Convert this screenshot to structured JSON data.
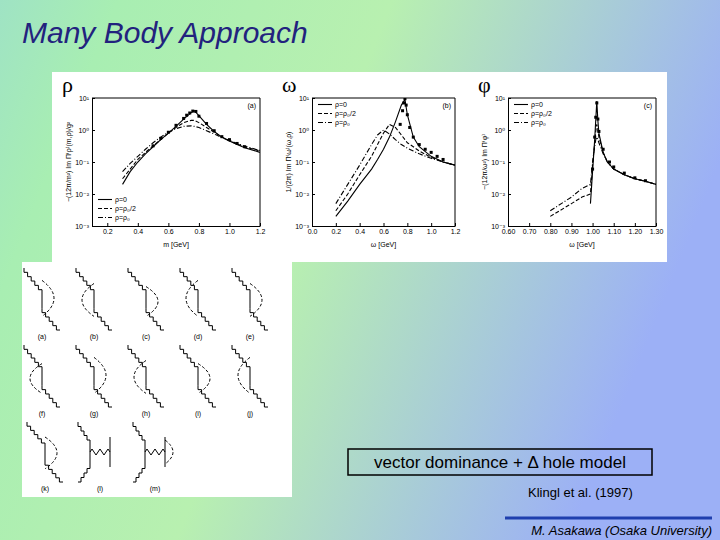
{
  "slide": {
    "title": "Many Body Approach",
    "box_text": "vector dominance + Δ hole model",
    "citation": "Klingl et al. (1997)",
    "author": "M. Asakawa (Osaka University)"
  },
  "diagrams": {
    "labels": [
      "(a)",
      "(b)",
      "(c)",
      "(d)",
      "(e)",
      "(f)",
      "(g)",
      "(h)",
      "(i)",
      "(j)",
      "(k)",
      "(l)",
      "(m)"
    ]
  },
  "chart_data": [
    {
      "type": "line",
      "title": "ρ",
      "xlabel": "m [GeV]",
      "ylabel": "−(12π/m²) Im Π⁽ρ⁾(m,ρ)/g²",
      "log": "y",
      "xlim": [
        0.1,
        1.2
      ],
      "xticks": [
        0.2,
        0.4,
        0.6,
        0.8,
        {
          "value": 1,
          "label": "1.0"
        },
        1.2
      ],
      "ylim": [
        0.001,
        10
      ],
      "yticks": [
        {
          "value": 0.001,
          "label": "10⁻³"
        },
        {
          "value": 0.01,
          "label": "10⁻²"
        },
        {
          "value": 0.1,
          "label": "10⁻¹"
        },
        {
          "value": 1,
          "label": "10⁰"
        },
        {
          "value": 10,
          "label": "10¹"
        }
      ],
      "legend": "lower left",
      "annotations": [
        {
          "text": "(a)"
        }
      ],
      "series": [
        {
          "name": "ρ=0",
          "type": "line",
          "color": "#000000",
          "line_style": "solid",
          "x": [
            0.3,
            0.35,
            0.4,
            0.45,
            0.5,
            0.55,
            0.6,
            0.65,
            0.7,
            0.75,
            0.77,
            0.8,
            0.85,
            0.9,
            0.95,
            1.0,
            1.05,
            1.1,
            1.2
          ],
          "values": [
            0.02,
            0.05,
            0.1,
            0.18,
            0.3,
            0.5,
            0.8,
            1.3,
            2.2,
            3.5,
            4.0,
            2.8,
            1.5,
            0.9,
            0.6,
            0.45,
            0.35,
            0.28,
            0.2
          ]
        },
        {
          "name": "ρ=ρ₀/2",
          "type": "line",
          "color": "#000000",
          "line_style": "dashed",
          "x": [
            0.3,
            0.35,
            0.4,
            0.45,
            0.5,
            0.55,
            0.6,
            0.65,
            0.7,
            0.75,
            0.77,
            0.8,
            0.85,
            0.9,
            0.95,
            1.0,
            1.05,
            1.1,
            1.2
          ],
          "values": [
            0.03,
            0.06,
            0.12,
            0.2,
            0.32,
            0.5,
            0.8,
            1.2,
            1.7,
            2.0,
            2.0,
            1.7,
            1.2,
            0.85,
            0.6,
            0.45,
            0.36,
            0.3,
            0.22
          ]
        },
        {
          "name": "ρ=ρ₀",
          "type": "line",
          "color": "#000000",
          "line_style": "dashdot",
          "x": [
            0.3,
            0.35,
            0.4,
            0.45,
            0.5,
            0.55,
            0.6,
            0.65,
            0.7,
            0.75,
            0.77,
            0.8,
            0.85,
            0.9,
            0.95,
            1.0,
            1.05,
            1.1,
            1.2
          ],
          "values": [
            0.05,
            0.09,
            0.15,
            0.25,
            0.4,
            0.6,
            0.85,
            1.1,
            1.3,
            1.35,
            1.3,
            1.2,
            0.95,
            0.75,
            0.58,
            0.47,
            0.38,
            0.31,
            0.23
          ]
        },
        {
          "type": "scatter",
          "color": "#000000",
          "marker": "square",
          "x": [
            0.5,
            0.55,
            0.6,
            0.65,
            0.7,
            0.72,
            0.74,
            0.76,
            0.78,
            0.8,
            0.85,
            0.9,
            0.95,
            1.0,
            1.05,
            1.1
          ],
          "values": [
            0.32,
            0.55,
            0.85,
            1.4,
            2.3,
            2.9,
            3.4,
            3.9,
            3.8,
            2.7,
            1.6,
            0.95,
            0.62,
            0.5,
            0.38,
            0.3
          ]
        }
      ]
    },
    {
      "type": "line",
      "title": "ω",
      "xlabel": "ω [GeV]",
      "ylabel": "1/(2π) Im Π⁽ω⁾(ω,ρ)",
      "log": "y",
      "xlim": [
        0,
        1.2
      ],
      "xticks": [
        {
          "value": 0,
          "label": "0.0"
        },
        0.2,
        0.4,
        0.6,
        0.8,
        {
          "value": 1,
          "label": "1.0"
        },
        1.2
      ],
      "ylim": [
        0.001,
        10
      ],
      "yticks": [
        {
          "value": 0.001,
          "label": "10⁻³"
        },
        {
          "value": 0.01,
          "label": "10⁻²"
        },
        {
          "value": 0.1,
          "label": "10⁻¹"
        },
        {
          "value": 1,
          "label": "10⁰"
        },
        {
          "value": 10,
          "label": "10¹"
        }
      ],
      "legend": "upper left",
      "annotations": [
        {
          "text": "(b)"
        }
      ],
      "series": [
        {
          "name": "ρ=0",
          "type": "line",
          "color": "#000000",
          "line_style": "solid",
          "x": [
            0.2,
            0.3,
            0.4,
            0.5,
            0.55,
            0.6,
            0.65,
            0.7,
            0.75,
            0.78,
            0.8,
            0.85,
            0.9,
            1.0,
            1.1,
            1.2
          ],
          "values": [
            0.002,
            0.006,
            0.02,
            0.06,
            0.12,
            0.25,
            0.6,
            1.8,
            6,
            9,
            3,
            0.6,
            0.3,
            0.15,
            0.1,
            0.08
          ]
        },
        {
          "name": "ρ=ρ₀/2",
          "type": "line",
          "color": "#000000",
          "line_style": "dashed",
          "x": [
            0.2,
            0.3,
            0.4,
            0.5,
            0.55,
            0.6,
            0.65,
            0.7,
            0.75,
            0.78,
            0.8,
            0.85,
            0.9,
            1.0,
            1.1,
            1.2
          ],
          "values": [
            0.003,
            0.01,
            0.04,
            0.15,
            0.35,
            0.8,
            1.5,
            1.2,
            0.7,
            0.5,
            0.4,
            0.3,
            0.22,
            0.14,
            0.1,
            0.08
          ]
        },
        {
          "name": "ρ=ρ₀",
          "type": "line",
          "color": "#000000",
          "line_style": "dashdot",
          "x": [
            0.2,
            0.3,
            0.4,
            0.5,
            0.55,
            0.6,
            0.65,
            0.7,
            0.75,
            0.78,
            0.8,
            0.85,
            0.9,
            1.0,
            1.1,
            1.2
          ],
          "values": [
            0.005,
            0.02,
            0.08,
            0.35,
            0.7,
            1.0,
            0.75,
            0.5,
            0.35,
            0.3,
            0.27,
            0.22,
            0.18,
            0.13,
            0.1,
            0.08
          ]
        },
        {
          "type": "scatter",
          "color": "#000000",
          "marker": "square",
          "x": [
            0.74,
            0.76,
            0.77,
            0.78,
            0.79,
            0.8,
            0.82,
            0.85,
            0.9,
            0.95,
            1.0,
            1.05,
            1.1
          ],
          "values": [
            1.5,
            4,
            7,
            9.5,
            6,
            3,
            1.2,
            0.6,
            0.35,
            0.25,
            0.2,
            0.15,
            0.12
          ]
        }
      ]
    },
    {
      "type": "line",
      "title": "φ",
      "xlabel": "ω [GeV]",
      "ylabel": "−(12π/ω²) Im Π⁽φ⁾",
      "log": "y",
      "xlim": [
        0.6,
        1.3
      ],
      "xticks": [
        {
          "value": 0.6,
          "label": "0.60"
        },
        {
          "value": 0.7,
          "label": "0.70"
        },
        {
          "value": 0.8,
          "label": "0.80"
        },
        {
          "value": 0.9,
          "label": "0.90"
        },
        {
          "value": 1,
          "label": "1.00"
        },
        {
          "value": 1.1,
          "label": "1.10"
        },
        {
          "value": 1.2,
          "label": "1.20"
        },
        {
          "value": 1.3,
          "label": "1.30"
        }
      ],
      "ylim": [
        0.001,
        10
      ],
      "yticks": [
        {
          "value": 0.001,
          "label": "10⁻³"
        },
        {
          "value": 0.01,
          "label": "10⁻²"
        },
        {
          "value": 0.1,
          "label": "10⁻¹"
        },
        {
          "value": 1,
          "label": "10⁰"
        },
        {
          "value": 10,
          "label": "10¹"
        }
      ],
      "legend": "upper left",
      "annotations": [
        {
          "text": "(c)"
        }
      ],
      "series": [
        {
          "name": "ρ=0",
          "type": "line",
          "color": "#000000",
          "line_style": "solid",
          "x": [
            0.8,
            0.9,
            0.95,
            0.99,
            1.0,
            1.01,
            1.015,
            1.02,
            1.025,
            1.03,
            1.05,
            1.07,
            1.1,
            1.15,
            1.2,
            1.25,
            1.3
          ],
          "values": [
            null,
            null,
            null,
            0.005,
            0.05,
            0.5,
            2,
            8,
            2,
            0.8,
            0.2,
            0.1,
            0.06,
            0.04,
            0.03,
            0.025,
            0.02
          ]
        },
        {
          "name": "ρ=ρ₀/2",
          "type": "line",
          "color": "#000000",
          "line_style": "dashed",
          "x": [
            0.8,
            0.9,
            0.95,
            0.99,
            1.0,
            1.01,
            1.015,
            1.02,
            1.025,
            1.03,
            1.05,
            1.07,
            1.1,
            1.15,
            1.2,
            1.25,
            1.3
          ],
          "values": [
            0.002,
            0.005,
            0.008,
            0.01,
            0.08,
            0.4,
            0.9,
            1.5,
            1.0,
            0.6,
            0.2,
            0.1,
            0.06,
            0.04,
            0.03,
            0.025,
            0.02
          ]
        },
        {
          "name": "ρ=ρ₀",
          "type": "line",
          "color": "#000000",
          "line_style": "dashdot",
          "x": [
            0.8,
            0.9,
            0.95,
            0.99,
            1.0,
            1.01,
            1.015,
            1.02,
            1.025,
            1.03,
            1.05,
            1.07,
            1.1,
            1.15,
            1.2,
            1.25,
            1.3
          ],
          "values": [
            0.003,
            0.008,
            0.015,
            0.02,
            0.1,
            0.3,
            0.5,
            0.6,
            0.5,
            0.4,
            0.18,
            0.1,
            0.06,
            0.04,
            0.03,
            0.025,
            0.02
          ]
        },
        {
          "type": "scatter",
          "color": "#000000",
          "marker": "square",
          "x": [
            1.0,
            1.01,
            1.015,
            1.02,
            1.025,
            1.03,
            1.05,
            1.08,
            1.1,
            1.15,
            1.2,
            1.25
          ],
          "values": [
            0.06,
            0.6,
            2.5,
            7,
            2.2,
            0.9,
            0.25,
            0.1,
            0.07,
            0.045,
            0.032,
            0.026
          ]
        }
      ]
    }
  ]
}
